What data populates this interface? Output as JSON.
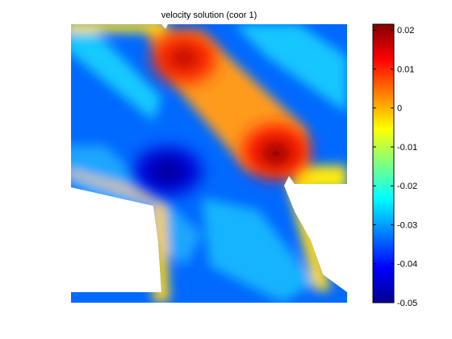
{
  "chart_data": {
    "type": "heatmap",
    "title": "velocity solution (coor 1)",
    "xlabel": "",
    "ylabel": "",
    "colormap": "jet",
    "colorbar": {
      "range": [
        -0.05,
        0.0215
      ],
      "ticks": [
        0.02,
        0.01,
        0,
        -0.01,
        -0.02,
        -0.03,
        -0.04,
        -0.05
      ],
      "tick_labels": [
        "0.02",
        "0.01",
        "0",
        "-0.01",
        "-0.02",
        "-0.03",
        "-0.04",
        "-0.05"
      ],
      "placement": "right"
    },
    "axes_visible": false,
    "grid": false,
    "domain": "L-shaped region",
    "features": {
      "maxima": [
        {
          "label": "upper-left hot spot",
          "value": 0.018
        },
        {
          "label": "center hot spot",
          "value": 0.0215
        }
      ],
      "minimum": {
        "label": "cold spot",
        "value": -0.05
      }
    }
  }
}
